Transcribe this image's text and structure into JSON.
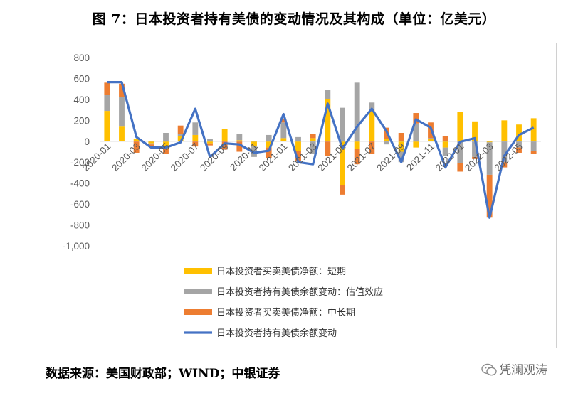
{
  "figure": {
    "title": "图 7：日本投资者持有美债的变动情况及其构成（单位：亿美元）",
    "source": "数据来源：美国财政部；WIND；中银证券",
    "watermark": "凭澜观涛"
  },
  "chart_data": {
    "type": "bar",
    "stacked": true,
    "title": "",
    "xlabel": "",
    "ylabel": "",
    "ylim": [
      -1000,
      800
    ],
    "yticks": [
      800,
      600,
      400,
      200,
      0,
      -200,
      -400,
      -600,
      -800,
      -1000
    ],
    "ytick_labels": [
      "800",
      "600",
      "400",
      "200",
      "0",
      "-200",
      "-400",
      "-600",
      "-800",
      "-1,000"
    ],
    "categories": [
      "2020-01",
      "2020-02",
      "2020-03",
      "2020-04",
      "2020-05",
      "2020-06",
      "2020-07",
      "2020-08",
      "2020-09",
      "2020-10",
      "2020-11",
      "2020-12",
      "2021-01",
      "2021-02",
      "2021-03",
      "2021-04",
      "2021-05",
      "2021-06",
      "2021-07",
      "2021-08",
      "2021-09",
      "2021-10",
      "2021-11",
      "2021-12",
      "2022-01",
      "2022-02",
      "2022-03",
      "2022-04",
      "2022-05",
      "2022-06"
    ],
    "xtick_labels": [
      "2020-01",
      "2020-03",
      "2020-05",
      "2020-07",
      "2020-09",
      "2020-11",
      "2021-01",
      "2021-03",
      "2021-05",
      "2021-07",
      "2021-09",
      "2021-11",
      "2022-01",
      "2022-03",
      "2022-05"
    ],
    "grid": false,
    "legend_position": "bottom-left",
    "series": [
      {
        "name": "日本投资者买卖美债净额：短期",
        "kind": "bar",
        "color": "#FFC000",
        "values": [
          290,
          140,
          20,
          -20,
          -70,
          50,
          60,
          -20,
          120,
          10,
          -50,
          -60,
          30,
          -90,
          30,
          400,
          -420,
          -70,
          300,
          20,
          -100,
          -60,
          20,
          -60,
          280,
          190,
          -10,
          200,
          160,
          220
        ]
      },
      {
        "name": "日本投资者持有美债余额变动：估值效应",
        "kind": "bar",
        "color": "#A5A5A5",
        "values": [
          150,
          280,
          0,
          -10,
          80,
          20,
          120,
          20,
          0,
          60,
          -100,
          60,
          150,
          40,
          -120,
          90,
          320,
          560,
          70,
          -30,
          -100,
          170,
          10,
          -80,
          -210,
          -150,
          -310,
          -200,
          -60,
          -90
        ]
      },
      {
        "name": "日本投资者买卖美债净额：中长期",
        "kind": "bar",
        "color": "#ED7D31",
        "values": [
          120,
          130,
          -110,
          -20,
          -50,
          80,
          -50,
          -20,
          -80,
          -100,
          0,
          -100,
          30,
          -100,
          40,
          -140,
          -90,
          -150,
          -120,
          110,
          80,
          100,
          150,
          50,
          -80,
          -20,
          -410,
          -50,
          -50,
          -30
        ]
      },
      {
        "name": "日本投资者持有美债余额变动",
        "kind": "line",
        "color": "#4472C4",
        "values": [
          565,
          565,
          40,
          -60,
          -60,
          -10,
          310,
          -150,
          -20,
          -30,
          -110,
          -90,
          260,
          -200,
          -220,
          360,
          -70,
          140,
          310,
          95,
          -200,
          210,
          130,
          -250,
          -5,
          30,
          -730,
          -140,
          60,
          130
        ]
      }
    ]
  }
}
